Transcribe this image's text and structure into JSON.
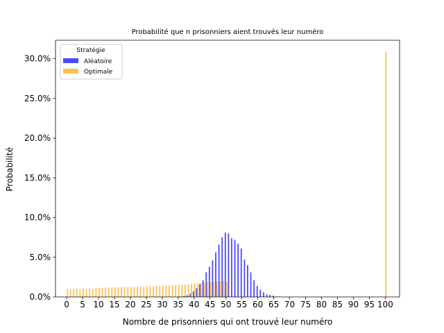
{
  "colors": {
    "Aléatoire": "#0000ff",
    "Optimale": "#ffa500",
    "axis": "#000000"
  },
  "chart_data": {
    "type": "bar",
    "title": "Probabilité que n prisonniers aient trouvés leur numéro",
    "xlabel": "Nombre de prisonniers qui ont trouvé leur numéro",
    "ylabel": "Probabilité",
    "xlim": [
      -3.5,
      104.5
    ],
    "ylim": [
      0,
      0.3233
    ],
    "xticks": [
      0,
      5,
      10,
      15,
      20,
      25,
      30,
      35,
      40,
      45,
      50,
      55,
      60,
      65,
      70,
      75,
      80,
      85,
      90,
      95,
      100
    ],
    "xtick_labels": [
      "0",
      "5",
      "10",
      "15",
      "20",
      "25",
      "30",
      "35",
      "40",
      "45",
      "50",
      "55",
      "60",
      "65",
      "70",
      "75",
      "80",
      "85",
      "90",
      "95",
      "100"
    ],
    "yticks": [
      0,
      0.05,
      0.1,
      0.15,
      0.2,
      0.25,
      0.3
    ],
    "ytick_labels": [
      "0.0%",
      "5.0%",
      "10.0%",
      "15.0%",
      "20.0%",
      "25.0%",
      "30.0%"
    ],
    "grid": false,
    "legend": {
      "title": "Stratégie",
      "position": "top-left"
    },
    "x": [
      0,
      1,
      2,
      3,
      4,
      5,
      6,
      7,
      8,
      9,
      10,
      11,
      12,
      13,
      14,
      15,
      16,
      17,
      18,
      19,
      20,
      21,
      22,
      23,
      24,
      25,
      26,
      27,
      28,
      29,
      30,
      31,
      32,
      33,
      34,
      35,
      36,
      37,
      38,
      39,
      40,
      41,
      42,
      43,
      44,
      45,
      46,
      47,
      48,
      49,
      50,
      51,
      52,
      53,
      54,
      55,
      56,
      57,
      58,
      59,
      60,
      61,
      62,
      63,
      64,
      65,
      66,
      67,
      68,
      69,
      70,
      71,
      72,
      73,
      74,
      75,
      76,
      77,
      78,
      79,
      80,
      81,
      82,
      83,
      84,
      85,
      86,
      87,
      88,
      89,
      90,
      91,
      92,
      93,
      94,
      95,
      96,
      97,
      98,
      99,
      100
    ],
    "series": [
      {
        "name": "Aléatoire",
        "values": [
          0,
          0,
          0,
          0,
          0,
          0,
          0,
          0,
          0,
          0,
          0,
          0,
          0,
          0,
          0,
          0,
          0,
          0,
          0,
          0,
          0,
          0,
          0,
          0,
          0,
          0,
          0,
          0,
          0,
          0,
          0,
          0,
          0,
          0,
          0.0001,
          0.0002,
          0.0005,
          0.001,
          0.002,
          0.004,
          0.007,
          0.011,
          0.016,
          0.021,
          0.031,
          0.038,
          0.046,
          0.056,
          0.066,
          0.075,
          0.081,
          0.08,
          0.074,
          0.072,
          0.067,
          0.061,
          0.047,
          0.04,
          0.031,
          0.021,
          0.014,
          0.009,
          0.006,
          0.003,
          0.0025,
          0.0015,
          0.0005,
          0.0002,
          0,
          0,
          0,
          0,
          0,
          0,
          0,
          0,
          0,
          0,
          0,
          0,
          0,
          0,
          0,
          0,
          0,
          0,
          0,
          0,
          0,
          0,
          0,
          0,
          0,
          0,
          0,
          0,
          0,
          0,
          0,
          0,
          0
        ]
      },
      {
        "name": "Optimale",
        "values": [
          0.0098,
          0.0092,
          0.0099,
          0.0104,
          0.0094,
          0.0107,
          0.0101,
          0.0106,
          0.0099,
          0.0112,
          0.0115,
          0.0113,
          0.0117,
          0.0118,
          0.012,
          0.0123,
          0.0119,
          0.0125,
          0.0127,
          0.0123,
          0.0122,
          0.0128,
          0.013,
          0.0129,
          0.0127,
          0.0131,
          0.0137,
          0.0135,
          0.0138,
          0.0133,
          0.0138,
          0.0139,
          0.0142,
          0.0144,
          0.0147,
          0.015,
          0.0153,
          0.0155,
          0.016,
          0.0165,
          0.017,
          0.0172,
          0.0175,
          0.018,
          0.0185,
          0.0188,
          0.019,
          0.0193,
          0.0197,
          0.02,
          0.0195,
          0,
          0,
          0,
          0,
          0,
          0,
          0,
          0,
          0,
          0,
          0,
          0,
          0,
          0,
          0,
          0,
          0,
          0,
          0,
          0,
          0,
          0,
          0,
          0,
          0,
          0,
          0,
          0,
          0,
          0,
          0,
          0,
          0,
          0,
          0,
          0,
          0,
          0,
          0,
          0,
          0,
          0,
          0,
          0,
          0,
          0,
          0,
          0,
          0,
          0.309
        ]
      }
    ]
  }
}
